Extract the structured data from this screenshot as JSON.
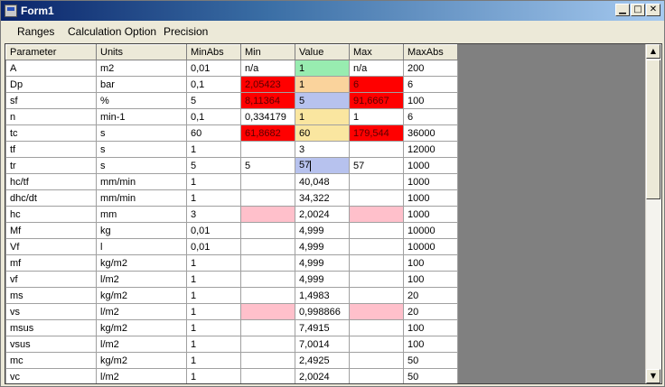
{
  "window": {
    "title": "Form1"
  },
  "menu": [
    "Ranges",
    "Calculation Option",
    "Precision"
  ],
  "columns": [
    "Parameter",
    "Units",
    "MinAbs",
    "Min",
    "Value",
    "Max",
    "MaxAbs"
  ],
  "rows": [
    {
      "param": "A",
      "units": "m2",
      "minabs": "0,01",
      "min": "n/a",
      "value": "1",
      "max": "n/a",
      "maxabs": "200",
      "min_color": "",
      "value_color": "green",
      "max_color": ""
    },
    {
      "param": "Dp",
      "units": "bar",
      "minabs": "0,1",
      "min": "2,05423",
      "value": "1",
      "max": "6",
      "maxabs": "6",
      "min_color": "red",
      "value_color": "orange",
      "max_color": "red"
    },
    {
      "param": "sf",
      "units": "%",
      "minabs": "5",
      "min": "8,11364",
      "value": "5",
      "max": "91,6667",
      "maxabs": "100",
      "min_color": "red",
      "value_color": "blue",
      "max_color": "red"
    },
    {
      "param": "n",
      "units": "min-1",
      "minabs": "0,1",
      "min": "0,334179",
      "value": "1",
      "max": "1",
      "maxabs": "6",
      "min_color": "",
      "value_color": "yellow",
      "max_color": ""
    },
    {
      "param": "tc",
      "units": "s",
      "minabs": "60",
      "min": "61,8682",
      "value": "60",
      "max": "179,544",
      "maxabs": "36000",
      "min_color": "red",
      "value_color": "yellow",
      "max_color": "red"
    },
    {
      "param": "tf",
      "units": "s",
      "minabs": "1",
      "min": "",
      "value": "3",
      "max": "",
      "maxabs": "12000",
      "min_color": "",
      "value_color": "",
      "max_color": ""
    },
    {
      "param": "tr",
      "units": "s",
      "minabs": "5",
      "min": "5",
      "value": "57",
      "max": "57",
      "maxabs": "1000",
      "min_color": "",
      "value_color": "blue",
      "max_color": ""
    },
    {
      "param": "hc/tf",
      "units": "mm/min",
      "minabs": "1",
      "min": "",
      "value": "40,048",
      "max": "",
      "maxabs": "1000",
      "min_color": "",
      "value_color": "",
      "max_color": ""
    },
    {
      "param": "dhc/dt",
      "units": "mm/min",
      "minabs": "1",
      "min": "",
      "value": "34,322",
      "max": "",
      "maxabs": "1000",
      "min_color": "",
      "value_color": "",
      "max_color": ""
    },
    {
      "param": "hc",
      "units": "mm",
      "minabs": "3",
      "min": "",
      "value": "2,0024",
      "max": "",
      "maxabs": "1000",
      "min_color": "pink",
      "value_color": "",
      "max_color": "pink"
    },
    {
      "param": "Mf",
      "units": "kg",
      "minabs": "0,01",
      "min": "",
      "value": "4,999",
      "max": "",
      "maxabs": "10000",
      "min_color": "",
      "value_color": "",
      "max_color": ""
    },
    {
      "param": "Vf",
      "units": "l",
      "minabs": "0,01",
      "min": "",
      "value": "4,999",
      "max": "",
      "maxabs": "10000",
      "min_color": "",
      "value_color": "",
      "max_color": ""
    },
    {
      "param": "mf",
      "units": "kg/m2",
      "minabs": "1",
      "min": "",
      "value": "4,999",
      "max": "",
      "maxabs": "100",
      "min_color": "",
      "value_color": "",
      "max_color": ""
    },
    {
      "param": "vf",
      "units": "l/m2",
      "minabs": "1",
      "min": "",
      "value": "4,999",
      "max": "",
      "maxabs": "100",
      "min_color": "",
      "value_color": "",
      "max_color": ""
    },
    {
      "param": "ms",
      "units": "kg/m2",
      "minabs": "1",
      "min": "",
      "value": "1,4983",
      "max": "",
      "maxabs": "20",
      "min_color": "",
      "value_color": "",
      "max_color": ""
    },
    {
      "param": "vs",
      "units": "l/m2",
      "minabs": "1",
      "min": "",
      "value": "0,998866",
      "max": "",
      "maxabs": "20",
      "min_color": "pink",
      "value_color": "",
      "max_color": "pink"
    },
    {
      "param": "msus",
      "units": "kg/m2",
      "minabs": "1",
      "min": "",
      "value": "7,4915",
      "max": "",
      "maxabs": "100",
      "min_color": "",
      "value_color": "",
      "max_color": ""
    },
    {
      "param": "vsus",
      "units": "l/m2",
      "minabs": "1",
      "min": "",
      "value": "7,0014",
      "max": "",
      "maxabs": "100",
      "min_color": "",
      "value_color": "",
      "max_color": ""
    },
    {
      "param": "mc",
      "units": "kg/m2",
      "minabs": "1",
      "min": "",
      "value": "2,4925",
      "max": "",
      "maxabs": "50",
      "min_color": "",
      "value_color": "",
      "max_color": ""
    },
    {
      "param": "vc",
      "units": "l/m2",
      "minabs": "1",
      "min": "",
      "value": "2,0024",
      "max": "",
      "maxabs": "50",
      "min_color": "",
      "value_color": "",
      "max_color": ""
    }
  ],
  "editing_row": 6
}
